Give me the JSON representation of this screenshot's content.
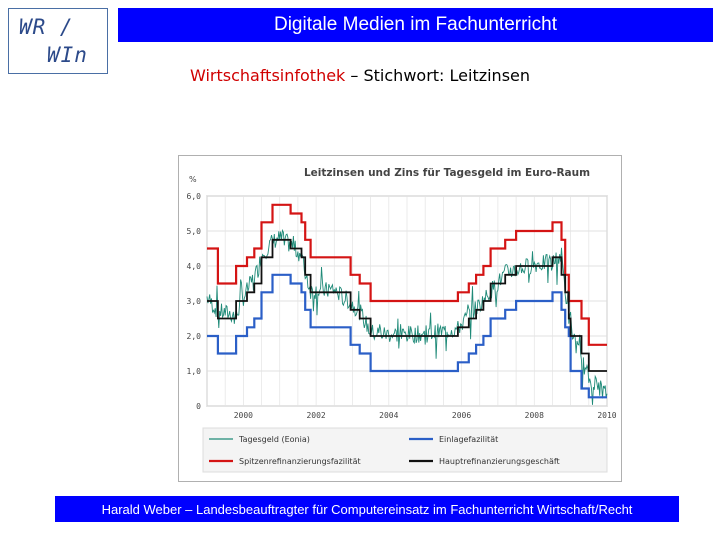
{
  "logo": {
    "line1": "WR /",
    "line2": "WIn"
  },
  "header": {
    "title": "Digitale Medien im Fachunterricht"
  },
  "subtitle": {
    "prefix": "Wirtschaftsinfothek",
    "suffix": " – Stichwort: Leitzinsen"
  },
  "footer": {
    "text": "Harald Weber – Landesbeauftragter für Computereinsatz im Fachunterricht Wirtschaft/Recht"
  },
  "colors": {
    "banner": "#0000ff",
    "spitzen": "#d41414",
    "einlage": "#2b5fc7",
    "haupt": "#111111",
    "tagesgeld": "#1f8a78"
  },
  "chart_data": {
    "type": "line",
    "title": "Leitzinsen und Zins für Tagesgeld im Euro-Raum",
    "ylabel": "%",
    "xlim": [
      1999.0,
      2010.0
    ],
    "ylim": [
      0,
      6
    ],
    "yticks": [
      "0",
      "1,0",
      "2,0",
      "3,0",
      "4,0",
      "5,0",
      "6,0"
    ],
    "ytick_values": [
      0,
      1,
      2,
      3,
      4,
      5,
      6
    ],
    "xticks": [
      "2000",
      "2002",
      "2004",
      "2006",
      "2008",
      "2010"
    ],
    "xtick_values": [
      2000,
      2002,
      2004,
      2006,
      2008,
      2010
    ],
    "grid": true,
    "legend_position": "bottom",
    "series": [
      {
        "name": "Tagesgeld (Eonia)",
        "key": "tagesgeld",
        "style": "noisy",
        "x": [
          1999.0,
          1999.3,
          1999.8,
          2000.0,
          2000.2,
          2000.4,
          2000.5,
          2000.8,
          2001.0,
          2001.3,
          2001.4,
          2001.6,
          2001.7,
          2001.85,
          2002.0,
          2002.5,
          2002.9,
          2003.2,
          2003.5,
          2004.0,
          2005.0,
          2005.9,
          2006.2,
          2006.4,
          2006.6,
          2006.8,
          2007.0,
          2007.2,
          2007.5,
          2008.0,
          2008.5,
          2008.75,
          2008.85,
          2009.0,
          2009.3,
          2009.5,
          2010.0
        ],
        "y": [
          3.1,
          2.7,
          2.6,
          3.1,
          3.5,
          3.9,
          4.3,
          4.7,
          4.8,
          4.6,
          4.5,
          4.3,
          3.8,
          3.3,
          3.3,
          3.3,
          3.0,
          2.7,
          2.1,
          2.05,
          2.05,
          2.2,
          2.6,
          2.8,
          3.0,
          3.3,
          3.5,
          3.8,
          3.9,
          4.05,
          4.1,
          4.3,
          3.3,
          2.2,
          1.3,
          0.8,
          0.35
        ]
      },
      {
        "name": "Einlagefazilität",
        "key": "einlage",
        "style": "step",
        "x": [
          1999.0,
          1999.3,
          1999.8,
          2000.1,
          2000.3,
          2000.5,
          2000.8,
          2001.3,
          2001.6,
          2001.7,
          2001.85,
          2002.95,
          2003.2,
          2003.5,
          2005.9,
          2006.2,
          2006.4,
          2006.6,
          2006.8,
          2007.2,
          2007.5,
          2008.5,
          2008.75,
          2008.85,
          2008.95,
          2009.0,
          2009.3,
          2009.5,
          2010.0
        ],
        "y": [
          2.0,
          1.5,
          2.0,
          2.25,
          2.5,
          3.25,
          3.75,
          3.5,
          3.25,
          2.75,
          2.25,
          1.75,
          1.5,
          1.0,
          1.25,
          1.5,
          1.75,
          2.0,
          2.5,
          2.75,
          3.0,
          3.25,
          2.75,
          2.25,
          2.0,
          1.0,
          0.5,
          0.25,
          0.25
        ]
      },
      {
        "name": "Spitzenrefinanzierungsfazilität",
        "key": "spitzen",
        "style": "step",
        "x": [
          1999.0,
          1999.3,
          1999.8,
          2000.1,
          2000.3,
          2000.5,
          2000.8,
          2001.3,
          2001.6,
          2001.7,
          2001.85,
          2002.95,
          2003.2,
          2003.5,
          2005.9,
          2006.2,
          2006.4,
          2006.6,
          2006.8,
          2007.2,
          2007.5,
          2008.5,
          2008.75,
          2008.85,
          2008.95,
          2009.0,
          2009.3,
          2009.5,
          2010.0
        ],
        "y": [
          4.5,
          3.5,
          4.0,
          4.25,
          4.5,
          5.25,
          5.75,
          5.5,
          5.25,
          4.75,
          4.25,
          3.75,
          3.5,
          3.0,
          3.25,
          3.5,
          3.75,
          4.0,
          4.5,
          4.75,
          5.0,
          5.25,
          4.75,
          3.75,
          3.0,
          3.0,
          2.5,
          1.75,
          1.75
        ]
      },
      {
        "name": "Hauptrefinanzierungsgeschäft",
        "key": "haupt",
        "style": "step",
        "x": [
          1999.0,
          1999.3,
          1999.8,
          2000.1,
          2000.3,
          2000.5,
          2000.8,
          2001.3,
          2001.6,
          2001.7,
          2001.85,
          2002.95,
          2003.2,
          2003.5,
          2005.9,
          2006.2,
          2006.4,
          2006.6,
          2006.8,
          2007.2,
          2007.5,
          2008.5,
          2008.75,
          2008.85,
          2008.95,
          2009.0,
          2009.3,
          2009.5,
          2010.0
        ],
        "y": [
          3.0,
          2.5,
          3.0,
          3.25,
          3.5,
          4.25,
          4.75,
          4.5,
          4.25,
          3.75,
          3.25,
          2.75,
          2.5,
          2.0,
          2.25,
          2.5,
          2.75,
          3.0,
          3.5,
          3.75,
          4.0,
          4.25,
          3.75,
          3.25,
          2.5,
          2.0,
          1.5,
          1.0,
          1.0
        ]
      }
    ],
    "legend": [
      {
        "label": "Tagesgeld (Eonia)",
        "key": "tagesgeld"
      },
      {
        "label": "Einlagefazilität",
        "key": "einlage"
      },
      {
        "label": "Spitzenrefinanzierungsfazilität",
        "key": "spitzen"
      },
      {
        "label": "Hauptrefinanzierungsgeschäft",
        "key": "haupt"
      }
    ]
  }
}
